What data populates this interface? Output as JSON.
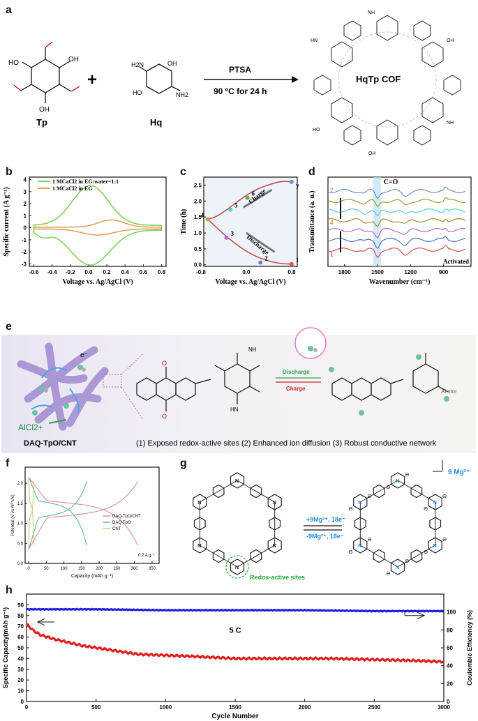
{
  "panel_labels": {
    "a": "a",
    "b": "b",
    "c": "c",
    "d": "d",
    "e": "e",
    "f": "f",
    "g": "g",
    "h": "h"
  },
  "panel_a": {
    "tp_label": "Tp",
    "hq_label": "Hq",
    "plus": "+",
    "reagent": "PTSA",
    "condition": "90 ºC for 24 h",
    "product": "HqTp COF",
    "oh": "OH",
    "ho": "HO",
    "nh": "NH",
    "hn": "HN",
    "h2n": "H2N",
    "nh2": "NH2"
  },
  "panel_b": {
    "chart_data": {
      "type": "line",
      "xlabel": "Voltage vs. Ag/AgCl (V)",
      "ylabel": "Specific current (A g⁻¹)",
      "xlim": [
        -0.65,
        0.85
      ],
      "ylim": [
        -3.2,
        4.2
      ],
      "x_ticks": [
        "-0.6",
        "-0.4",
        "-0.2",
        "0.0",
        "0.2",
        "0.4",
        "0.6",
        "0.8"
      ],
      "y_ticks": [
        "-3",
        "-2",
        "-1",
        "0",
        "1",
        "2",
        "3",
        "4"
      ],
      "series": [
        {
          "name": "1 MCaCl2 in EG:water=1:1",
          "color": "#7fcf5f"
        },
        {
          "name": "1 MCaCl2  in EG",
          "color": "#d9a35a"
        }
      ]
    }
  },
  "panel_c": {
    "chart_data": {
      "type": "line",
      "xlabel": "Voltage vs. Ag/AgCl (V)",
      "ylabel": "Time (h)",
      "xlim": [
        -0.75,
        0.9
      ],
      "ylim": [
        -0.05,
        2.75
      ],
      "x_ticks": [
        "-0.8",
        "0.0",
        "0.8"
      ],
      "y_ticks": [
        "0.0",
        "0.5",
        "1.0",
        "1.5",
        "2.0",
        "2.5"
      ],
      "points": [
        {
          "label": "1",
          "x": 0.8,
          "y": 0.02,
          "color": "#d6584d"
        },
        {
          "label": "2",
          "x": 0.25,
          "y": 0.07,
          "color": "#7a7ad6"
        },
        {
          "label": "3",
          "x": -0.35,
          "y": 0.85,
          "color": "#b566c8"
        },
        {
          "label": "4",
          "x": -0.68,
          "y": 1.43,
          "color": "#c8a23c"
        },
        {
          "label": "5",
          "x": -0.28,
          "y": 1.73,
          "color": "#5fc8c8"
        },
        {
          "label": "6",
          "x": 0.02,
          "y": 2.1,
          "color": "#6fae3c"
        },
        {
          "label": "7",
          "x": 0.8,
          "y": 2.6,
          "color": "#7a8cc8"
        }
      ],
      "annotations": {
        "charge": "Charge",
        "discharge": "Discharge"
      }
    }
  },
  "panel_d": {
    "chart_data": {
      "type": "line",
      "xlabel": "Wavenumber (cm⁻¹)",
      "ylabel": "Transmittance (a. u.)",
      "x_ticks": [
        "1800",
        "1500",
        "1200",
        "900"
      ],
      "band_label": "C=O",
      "activated_label": "Activated",
      "curve_labels": [
        "7",
        "4",
        "1"
      ],
      "series_colors": [
        "#6e8fc8",
        "#9c9c3c",
        "#5ccfcf",
        "#9c8c2c",
        "#b070c8",
        "#4f6fd0",
        "#d05050"
      ]
    }
  },
  "panel_e": {
    "composite": "DAQ-TpO/CNT",
    "electron": "e⁻",
    "ion": "AlCl2+",
    "discharge": "Discharge",
    "charge": "Charge",
    "nh": "NH",
    "hn": "HN",
    "side_text": "Al stor",
    "features": "(1) Exposed redox-active sites (2) Enhanced ion diffusion (3) Robust conductive network"
  },
  "panel_f": {
    "chart_data": {
      "type": "line",
      "xlabel": "Capacity (mAh g⁻¹)",
      "ylabel": "Potential (V vs Al³⁺/Al)",
      "xlim": [
        -10,
        370
      ],
      "ylim": [
        0,
        2.4
      ],
      "x_ticks": [
        "0",
        "50",
        "100",
        "150",
        "200",
        "250",
        "300",
        "350"
      ],
      "y_ticks": [
        "0.0",
        "0.5",
        "1.0",
        "1.5",
        "2.0"
      ],
      "rate_label": "0.2 A g⁻¹",
      "series": [
        {
          "name": "DAQ-TpO/CNT",
          "color": "#d88a9a",
          "capacity": 310
        },
        {
          "name": "DAQ-TpO",
          "color": "#5ab89a",
          "capacity": 165
        },
        {
          "name": "CNT",
          "color": "#c8c87a",
          "capacity": 15
        }
      ]
    }
  },
  "panel_g": {
    "forward": "+9Mg²⁺, 18e⁻",
    "reverse": "-9Mg²⁺, 18e⁻",
    "redox_label": "Redox-active sites",
    "mg_label": "9 Mg²⁺",
    "n": "N",
    "minus": "⊖"
  },
  "panel_h": {
    "chart_data": {
      "type": "scatter",
      "xlabel": "Cycle Number",
      "ylabel_left": "Specific Capacity(mAh g⁻¹)",
      "ylabel_right": "Coulombic Efficiency (%)",
      "xlim": [
        0,
        3000
      ],
      "ylim_left": [
        0,
        100
      ],
      "ylim_right": [
        0,
        120
      ],
      "x_ticks": [
        "0",
        "500",
        "1000",
        "1500",
        "2000",
        "2500",
        "3000"
      ],
      "y_ticks_left": [
        "0",
        "10",
        "20",
        "30",
        "40",
        "50",
        "60",
        "70",
        "80",
        "90"
      ],
      "y_ticks_right": [
        "0",
        "20",
        "40",
        "60",
        "80",
        "100"
      ],
      "rate_label": "5 C",
      "capacity_series": {
        "color": "#e02020",
        "x": [
          0,
          50,
          100,
          200,
          300,
          400,
          500,
          600,
          800,
          1000,
          1200,
          1500,
          1800,
          2000,
          2200,
          2500,
          2800,
          3000
        ],
        "y": [
          72,
          66,
          62,
          58,
          55,
          52,
          50,
          48,
          44,
          43,
          42,
          40,
          40,
          40,
          40,
          39,
          38,
          37
        ]
      },
      "efficiency_series": {
        "color": "#2020e0",
        "x": [
          0,
          500,
          1000,
          1500,
          2000,
          2500,
          3000
        ],
        "y": [
          103,
          103,
          102,
          102,
          102,
          101,
          101
        ]
      }
    }
  }
}
